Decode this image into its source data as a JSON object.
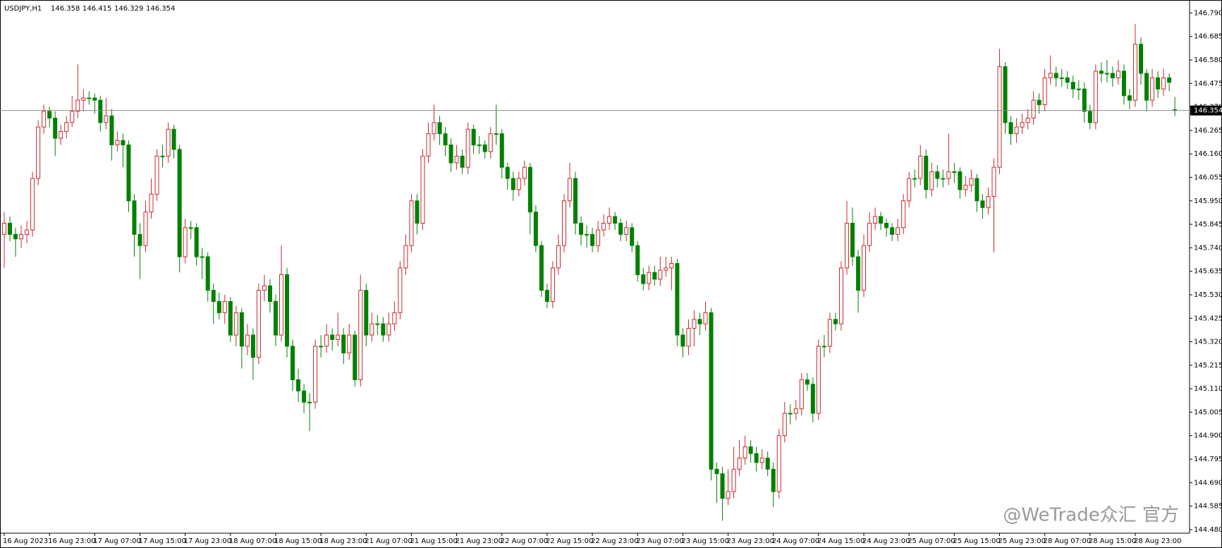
{
  "chart_data": {
    "type": "candlestick",
    "symbol": "USDJPY,H1",
    "watermark": "@WeTrade众汇 官方",
    "up_color": "#c8282d",
    "down_color": "#008000",
    "ylim": [
      144.464,
      146.848
    ],
    "yticks": [
      {
        "value": 144.48,
        "label": "144.480"
      },
      144.585,
      {
        "value": 144.69,
        "label": "144.690"
      },
      144.795,
      {
        "value": 144.9,
        "label": "144.900"
      },
      145.005,
      {
        "value": 145.11,
        "label": "145.110"
      },
      145.215,
      {
        "value": 145.32,
        "label": "145.320"
      },
      145.425,
      {
        "value": 145.53,
        "label": "145.530"
      },
      145.635,
      {
        "value": 145.74,
        "label": "145.740"
      },
      145.845,
      {
        "value": 145.95,
        "label": "145.950"
      },
      146.055,
      {
        "value": 146.16,
        "label": "146.160"
      },
      146.265,
      {
        "value": 146.37,
        "label": "146.370"
      },
      146.475,
      {
        "value": 146.58,
        "label": "146.580"
      },
      146.685,
      {
        "value": 146.79,
        "label": "146.790"
      }
    ],
    "categories": [
      "16 Aug 2023",
      null,
      null,
      null,
      null,
      null,
      null,
      null,
      "16 Aug 23:00",
      null,
      null,
      null,
      null,
      null,
      null,
      null,
      "17 Aug 07:00",
      null,
      null,
      null,
      null,
      null,
      null,
      null,
      "17 Aug 15:00",
      null,
      null,
      null,
      null,
      null,
      null,
      null,
      "17 Aug 23:00",
      null,
      null,
      null,
      null,
      null,
      null,
      null,
      "18 Aug 07:00",
      null,
      null,
      null,
      null,
      null,
      null,
      null,
      "18 Aug 15:00",
      null,
      null,
      null,
      null,
      null,
      null,
      null,
      "18 Aug 23:00",
      null,
      null,
      null,
      null,
      null,
      null,
      null,
      "21 Aug 07:00",
      null,
      null,
      null,
      null,
      null,
      null,
      null,
      "21 Aug 15:00",
      null,
      null,
      null,
      null,
      null,
      null,
      null,
      "21 Aug 23:00",
      null,
      null,
      null,
      null,
      null,
      null,
      null,
      "22 Aug 07:00",
      null,
      null,
      null,
      null,
      null,
      null,
      null,
      "22 Aug 15:00",
      null,
      null,
      null,
      null,
      null,
      null,
      null,
      "22 Aug 23:00",
      null,
      null,
      null,
      null,
      null,
      null,
      null,
      "23 Aug 07:00",
      null,
      null,
      null,
      null,
      null,
      null,
      null,
      "23 Aug 15:00",
      null,
      null,
      null,
      null,
      null,
      null,
      null,
      "23 Aug 23:00",
      null,
      null,
      null,
      null,
      null,
      null,
      null,
      "24 Aug 07:00",
      null,
      null,
      null,
      null,
      null,
      null,
      null,
      "24 Aug 15:00",
      null,
      null,
      null,
      null,
      null,
      null,
      null,
      "24 Aug 23:00",
      null,
      null,
      null,
      null,
      null,
      null,
      null,
      "25 Aug 07:00",
      null,
      null,
      null,
      null,
      null,
      null,
      null,
      "25 Aug 15:00",
      null,
      null,
      null,
      null,
      null,
      null,
      null,
      "25 Aug 23:00",
      null,
      null,
      null,
      null,
      null,
      null,
      null,
      "28 Aug 07:00",
      null,
      null,
      null,
      null,
      null,
      null,
      null,
      "28 Aug 15:00",
      null,
      null,
      null,
      null,
      null,
      null,
      null,
      "28 Aug 23:00",
      null,
      null,
      null,
      null,
      null,
      null,
      null
    ],
    "open": [
      145.8,
      145.85,
      145.8,
      145.78,
      145.8,
      145.82,
      146.05,
      146.28,
      146.35,
      146.32,
      146.23,
      146.26,
      146.3,
      146.35,
      146.4,
      146.41,
      146.41,
      146.4,
      146.3,
      146.33,
      146.2,
      146.22,
      146.2,
      145.95,
      145.8,
      145.75,
      145.9,
      145.98,
      146.15,
      146.15,
      146.27,
      146.18,
      145.7,
      145.83,
      145.83,
      145.7,
      145.7,
      145.55,
      145.5,
      145.45,
      145.5,
      145.35,
      145.45,
      145.3,
      145.35,
      145.25,
      145.55,
      145.57,
      145.5,
      145.35,
      145.62,
      145.3,
      145.15,
      145.1,
      145.05,
      145.05,
      145.3,
      145.3,
      145.35,
      145.33,
      145.35,
      145.27,
      145.35,
      145.15,
      145.55,
      145.35,
      145.4,
      145.4,
      145.35,
      145.4,
      145.45,
      145.65,
      145.75,
      145.95,
      145.85,
      146.15,
      146.25,
      146.3,
      146.25,
      146.2,
      146.12,
      146.15,
      146.1,
      146.27,
      146.2,
      146.2,
      146.17,
      146.25,
      146.25,
      146.1,
      146.05,
      146.0,
      146.05,
      146.1,
      145.9,
      145.75,
      145.55,
      145.5,
      145.65,
      145.75,
      145.95,
      146.05,
      145.85,
      145.8,
      145.8,
      145.75,
      145.82,
      145.85,
      145.88,
      145.85,
      145.8,
      145.83,
      145.75,
      145.62,
      145.58,
      145.63,
      145.6,
      145.64,
      145.65,
      145.67,
      145.35,
      145.3,
      145.38,
      145.42,
      145.4,
      145.45,
      144.75,
      144.73,
      144.62,
      144.65,
      144.75,
      144.8,
      144.85,
      144.82,
      144.78,
      144.8,
      144.75,
      144.65,
      144.9,
      145.0,
      145.0,
      145.02,
      145.15,
      145.13,
      145.0,
      145.3,
      145.3,
      145.42,
      145.4,
      145.65,
      145.85,
      145.7,
      145.55,
      145.75,
      145.85,
      145.88,
      145.85,
      145.83,
      145.8,
      145.83,
      145.95,
      146.05,
      146.05,
      146.15,
      146.0,
      146.08,
      146.05,
      146.05,
      146.08,
      146.08,
      146.0,
      146.02,
      146.05,
      145.95,
      145.92,
      145.97,
      146.1,
      146.55,
      146.3,
      146.25,
      146.28,
      146.3,
      146.32,
      146.4,
      146.38,
      146.5,
      146.52,
      146.5,
      146.5,
      146.48,
      146.45,
      146.45,
      146.35,
      146.3,
      146.53,
      146.52,
      146.52,
      146.5,
      146.53,
      146.42,
      146.4,
      146.65,
      146.52,
      146.4,
      146.5,
      146.45,
      146.5,
      146.358
    ],
    "high": [
      145.9,
      145.88,
      145.83,
      145.84,
      145.86,
      146.08,
      146.31,
      146.38,
      146.37,
      146.35,
      146.29,
      146.33,
      146.42,
      146.56,
      146.45,
      146.44,
      146.43,
      146.42,
      146.41,
      146.36,
      146.26,
      146.25,
      146.22,
      145.98,
      145.85,
      145.95,
      146.05,
      146.18,
      146.2,
      146.3,
      146.29,
      146.2,
      145.87,
      145.86,
      145.85,
      145.74,
      145.72,
      145.58,
      145.54,
      145.53,
      145.52,
      145.48,
      145.47,
      145.4,
      145.38,
      145.58,
      145.62,
      145.6,
      145.53,
      145.75,
      145.65,
      145.33,
      145.2,
      145.13,
      145.09,
      145.33,
      145.35,
      145.4,
      145.38,
      145.45,
      145.38,
      145.4,
      145.37,
      145.62,
      145.58,
      145.45,
      145.44,
      145.43,
      145.45,
      145.5,
      145.68,
      145.8,
      145.98,
      145.98,
      146.18,
      146.3,
      146.38,
      146.33,
      146.28,
      146.23,
      146.2,
      146.18,
      146.3,
      146.29,
      146.24,
      146.22,
      146.28,
      146.38,
      146.27,
      146.12,
      146.08,
      146.08,
      146.13,
      146.12,
      145.93,
      145.77,
      145.58,
      145.68,
      145.8,
      145.98,
      146.12,
      146.08,
      145.88,
      145.84,
      145.83,
      145.86,
      145.89,
      145.92,
      145.9,
      145.87,
      145.86,
      145.85,
      145.77,
      145.65,
      145.66,
      145.66,
      145.7,
      145.7,
      145.7,
      145.69,
      145.38,
      145.42,
      145.46,
      145.45,
      145.5,
      145.47,
      144.78,
      144.76,
      144.75,
      144.85,
      144.88,
      144.9,
      144.88,
      144.85,
      144.84,
      144.83,
      144.78,
      144.93,
      145.05,
      145.04,
      145.06,
      145.18,
      145.18,
      145.16,
      145.33,
      145.35,
      145.45,
      145.45,
      145.68,
      145.95,
      145.92,
      145.73,
      145.8,
      145.9,
      145.92,
      145.9,
      145.87,
      145.85,
      145.87,
      145.98,
      146.08,
      146.09,
      146.2,
      146.18,
      146.12,
      146.11,
      146.09,
      146.25,
      146.12,
      146.1,
      146.06,
      146.09,
      146.07,
      145.98,
      146.01,
      146.14,
      146.63,
      146.57,
      146.33,
      146.32,
      146.34,
      146.36,
      146.44,
      146.43,
      146.54,
      146.6,
      146.55,
      146.54,
      146.53,
      146.51,
      146.49,
      146.48,
      146.38,
      146.56,
      146.57,
      146.58,
      146.55,
      146.58,
      146.56,
      146.45,
      146.74,
      146.68,
      146.54,
      146.54,
      146.53,
      146.54,
      146.52,
      146.415
    ],
    "low": [
      145.65,
      145.77,
      145.7,
      145.74,
      145.76,
      145.79,
      146.02,
      146.25,
      146.28,
      146.15,
      146.2,
      146.23,
      146.28,
      146.32,
      146.35,
      146.38,
      146.34,
      146.26,
      146.27,
      146.13,
      146.17,
      146.1,
      145.9,
      145.7,
      145.6,
      145.72,
      145.87,
      145.95,
      146.1,
      146.12,
      146.14,
      145.63,
      145.67,
      145.78,
      145.66,
      145.6,
      145.5,
      145.4,
      145.42,
      145.4,
      145.32,
      145.3,
      145.2,
      145.26,
      145.15,
      145.22,
      145.5,
      145.45,
      145.3,
      145.32,
      145.25,
      145.1,
      145.05,
      145.0,
      144.92,
      145.02,
      145.25,
      145.27,
      145.28,
      145.3,
      145.22,
      145.24,
      145.12,
      145.12,
      145.3,
      145.32,
      145.35,
      145.32,
      145.32,
      145.37,
      145.42,
      145.62,
      145.72,
      145.8,
      145.82,
      146.12,
      146.22,
      146.2,
      146.15,
      146.08,
      146.09,
      146.07,
      146.07,
      146.16,
      146.16,
      146.14,
      146.14,
      146.2,
      146.05,
      146.0,
      145.95,
      145.97,
      146.02,
      145.8,
      145.72,
      145.52,
      145.47,
      145.47,
      145.62,
      145.72,
      145.92,
      145.8,
      145.75,
      145.74,
      145.72,
      145.72,
      145.79,
      145.82,
      145.82,
      145.77,
      145.77,
      145.72,
      145.59,
      145.55,
      145.55,
      145.57,
      145.57,
      145.61,
      145.55,
      145.3,
      145.25,
      145.26,
      145.3,
      145.35,
      145.37,
      144.7,
      144.6,
      144.52,
      144.59,
      144.62,
      144.72,
      144.77,
      144.78,
      144.74,
      144.75,
      144.72,
      144.58,
      144.62,
      144.87,
      144.95,
      144.97,
      144.99,
      145.1,
      144.96,
      144.97,
      145.25,
      145.27,
      145.37,
      145.37,
      145.62,
      145.66,
      145.45,
      145.52,
      145.72,
      145.82,
      145.82,
      145.79,
      145.77,
      145.77,
      145.8,
      145.92,
      146.01,
      146.02,
      145.96,
      145.97,
      146.01,
      146.01,
      146.02,
      146.03,
      145.96,
      145.97,
      145.99,
      145.9,
      145.87,
      145.89,
      145.72,
      146.07,
      146.25,
      146.2,
      146.21,
      146.25,
      146.27,
      146.29,
      146.34,
      146.35,
      146.47,
      146.46,
      146.46,
      146.45,
      146.41,
      146.4,
      146.3,
      146.27,
      146.27,
      146.48,
      146.48,
      146.46,
      146.47,
      146.38,
      146.36,
      146.37,
      146.47,
      146.35,
      146.37,
      146.41,
      146.42,
      146.44,
      146.329
    ],
    "close": [
      145.85,
      145.8,
      145.78,
      145.8,
      145.82,
      146.05,
      146.28,
      146.35,
      146.32,
      146.23,
      146.26,
      146.3,
      146.35,
      146.4,
      146.41,
      146.41,
      146.4,
      146.3,
      146.33,
      146.2,
      146.22,
      146.2,
      145.95,
      145.8,
      145.75,
      145.9,
      145.98,
      146.15,
      146.15,
      146.27,
      146.18,
      145.7,
      145.83,
      145.83,
      145.7,
      145.7,
      145.55,
      145.5,
      145.45,
      145.5,
      145.35,
      145.45,
      145.3,
      145.35,
      145.25,
      145.55,
      145.57,
      145.5,
      145.35,
      145.62,
      145.3,
      145.15,
      145.1,
      145.05,
      145.05,
      145.3,
      145.3,
      145.35,
      145.33,
      145.35,
      145.27,
      145.35,
      145.15,
      145.55,
      145.35,
      145.4,
      145.4,
      145.35,
      145.4,
      145.45,
      145.65,
      145.75,
      145.95,
      145.85,
      146.15,
      146.25,
      146.3,
      146.25,
      146.2,
      146.12,
      146.15,
      146.1,
      146.27,
      146.2,
      146.2,
      146.17,
      146.25,
      146.25,
      146.1,
      146.05,
      146.0,
      146.05,
      146.1,
      145.9,
      145.75,
      145.55,
      145.5,
      145.65,
      145.75,
      145.95,
      146.05,
      145.85,
      145.8,
      145.8,
      145.75,
      145.82,
      145.85,
      145.88,
      145.85,
      145.8,
      145.83,
      145.75,
      145.62,
      145.58,
      145.63,
      145.6,
      145.64,
      145.65,
      145.67,
      145.35,
      145.3,
      145.38,
      145.42,
      145.4,
      145.45,
      144.75,
      144.73,
      144.62,
      144.65,
      144.75,
      144.8,
      144.85,
      144.82,
      144.78,
      144.8,
      144.75,
      144.65,
      144.9,
      145.0,
      145.0,
      145.02,
      145.15,
      145.13,
      145.0,
      145.3,
      145.3,
      145.42,
      145.4,
      145.65,
      145.85,
      145.7,
      145.55,
      145.75,
      145.85,
      145.88,
      145.85,
      145.83,
      145.8,
      145.83,
      145.95,
      146.05,
      146.05,
      146.15,
      146.0,
      146.08,
      146.05,
      146.05,
      146.08,
      146.08,
      146.0,
      146.02,
      146.05,
      145.95,
      145.92,
      145.97,
      146.1,
      146.55,
      146.3,
      146.25,
      146.28,
      146.3,
      146.32,
      146.4,
      146.38,
      146.5,
      146.52,
      146.5,
      146.5,
      146.48,
      146.45,
      146.45,
      146.35,
      146.3,
      146.53,
      146.52,
      146.52,
      146.5,
      146.53,
      146.42,
      146.4,
      146.65,
      146.52,
      146.4,
      146.5,
      146.45,
      146.5,
      146.48,
      146.354
    ]
  }
}
